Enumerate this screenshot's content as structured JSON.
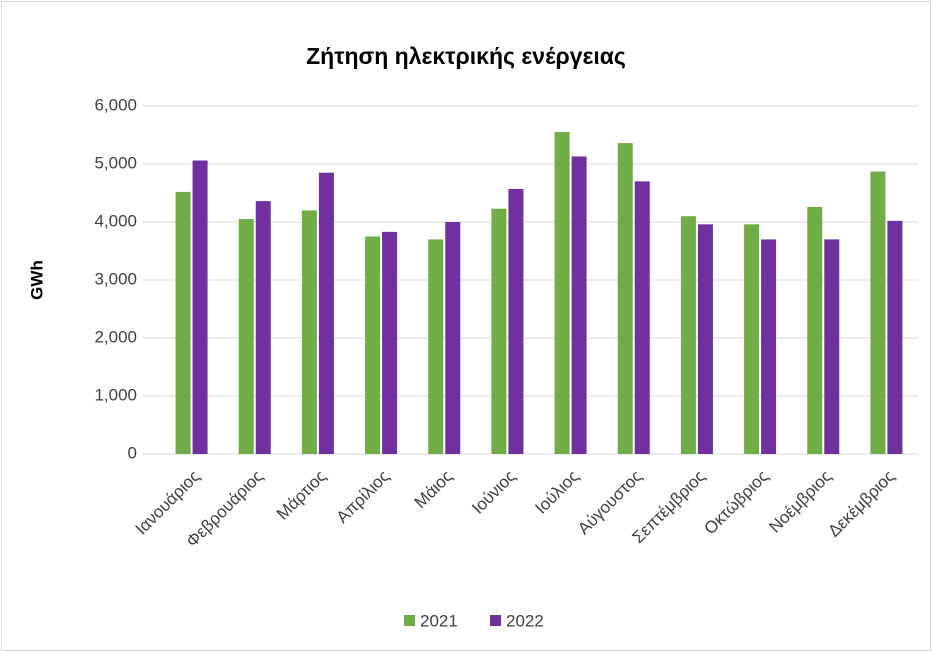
{
  "chart_data": {
    "type": "bar",
    "title": "Ζήτηση ηλεκτρικής ενέργειας",
    "y_label": "GWh",
    "categories": [
      "Ιανουάριος",
      "Φεβρουάριος",
      "Μάρτιος",
      "Απρίλιος",
      "Μάιος",
      "Ιούνιος",
      "Ιούλιος",
      "Αύγουστος",
      "Σεπτέμβριος",
      "Οκτώβριος",
      "Νοέμβριος",
      "Δεκέμβριος"
    ],
    "series": [
      {
        "name": "2021",
        "color": "#70ad47",
        "values": [
          4520,
          4050,
          4200,
          3750,
          3700,
          4230,
          5550,
          5360,
          4100,
          3960,
          4260,
          4870
        ]
      },
      {
        "name": "2022",
        "color": "#7030a0",
        "values": [
          5060,
          4360,
          4850,
          3830,
          4000,
          4570,
          5130,
          4700,
          3960,
          3700,
          3700,
          4020
        ]
      }
    ],
    "ylim": [
      0,
      6000
    ],
    "yticks": [
      0,
      {
        "value": 1000,
        "label": "1,000"
      },
      {
        "value": 2000,
        "label": "2,000"
      },
      {
        "value": 3000,
        "label": "3,000"
      },
      {
        "value": 4000,
        "label": "4,000"
      },
      {
        "value": 5000,
        "label": "5,000"
      },
      {
        "value": 6000,
        "label": "6,000"
      }
    ],
    "grid": true,
    "legend": "bottom"
  }
}
